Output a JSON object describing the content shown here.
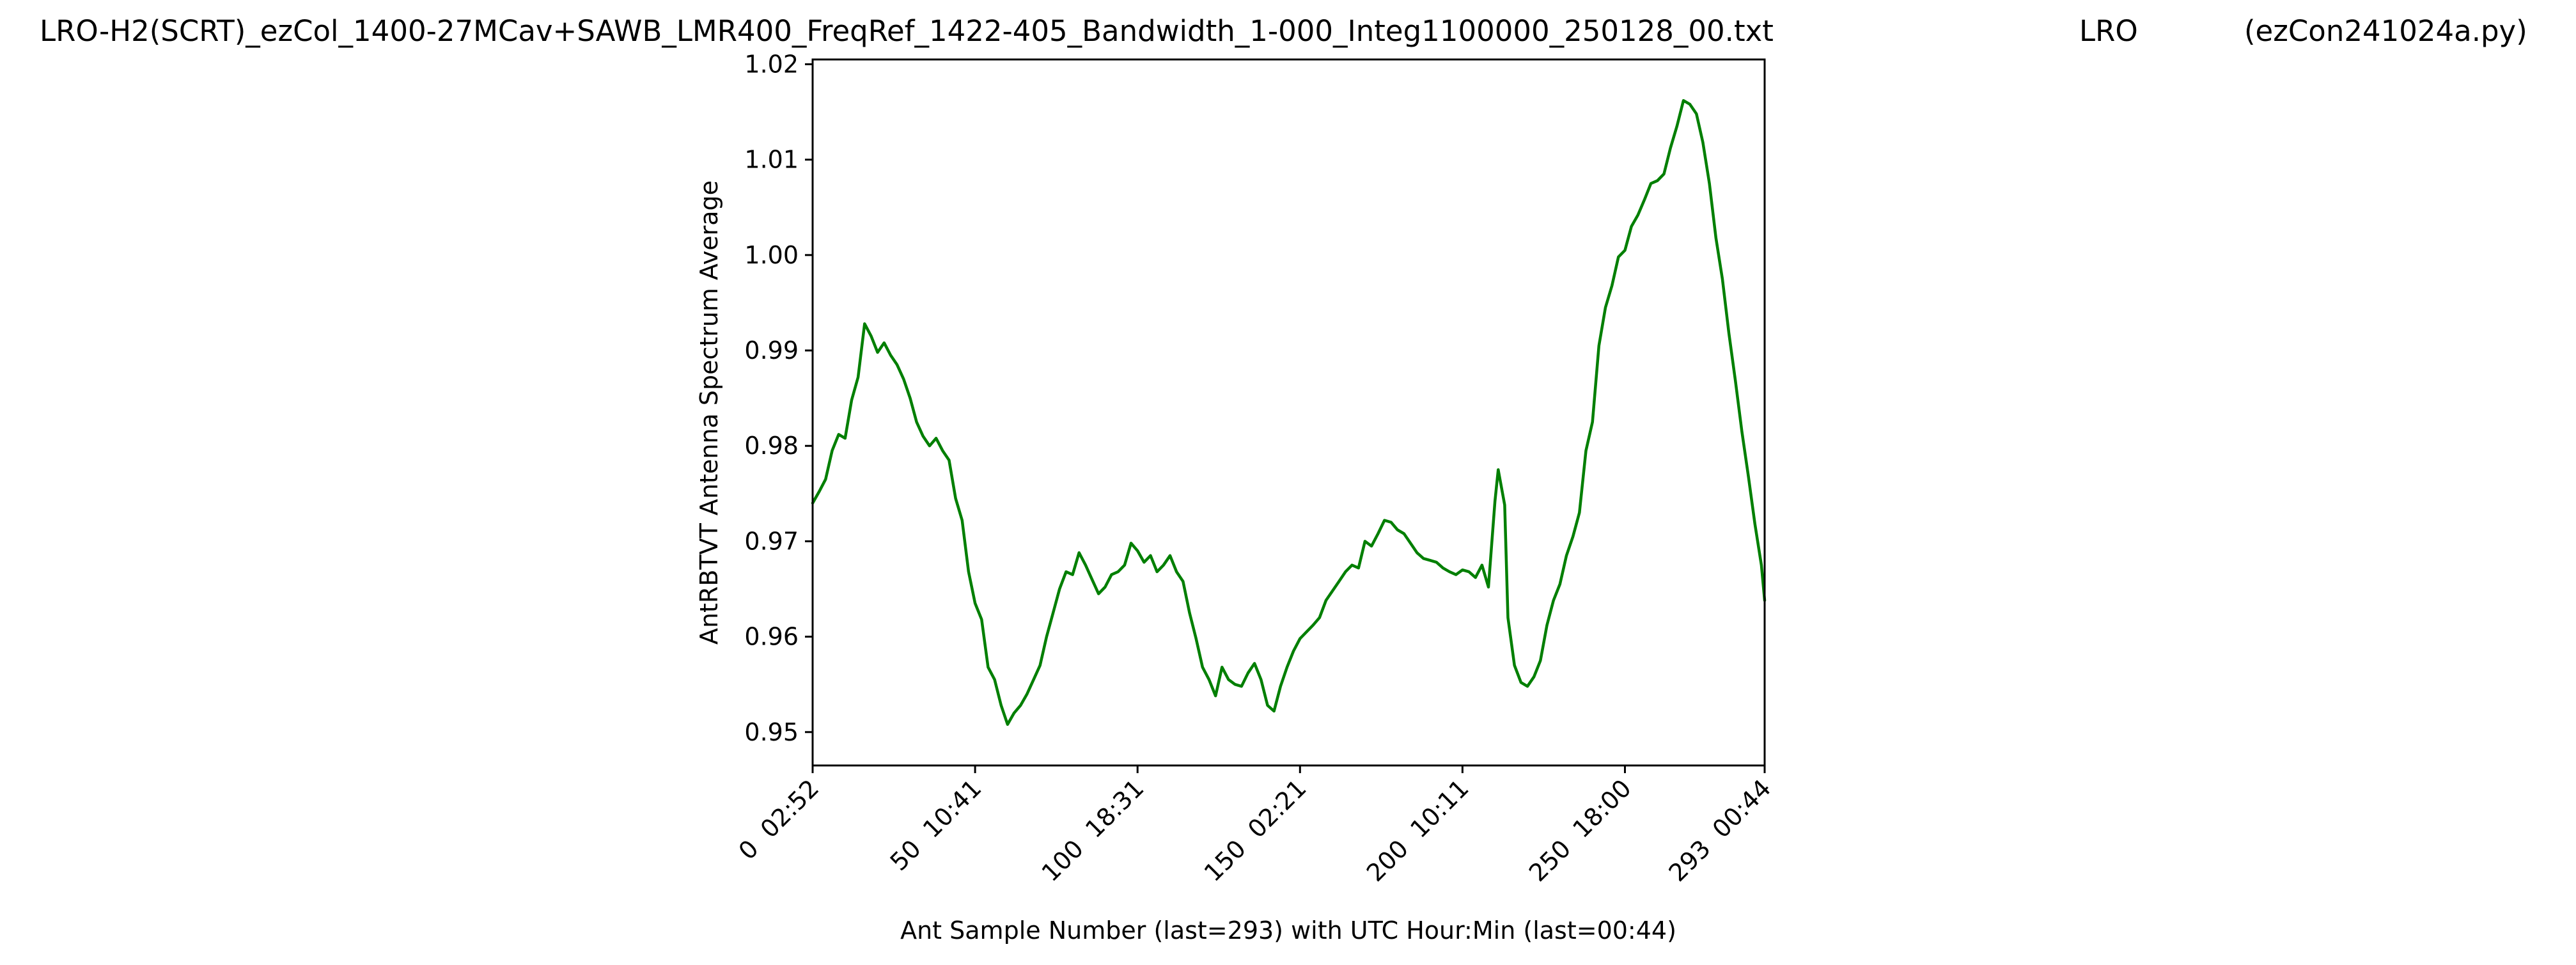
{
  "chart_data": {
    "type": "line",
    "title": "LRO-H2(SCRT)_ezCol_1400-27MCav+SAWB_LMR400_FreqRef_1422-405_Bandwidth_1-000_Integ1100000_250128_00.txt",
    "title_middle": "LRO",
    "title_right": "(ezCon241024a.py)",
    "xlabel": "Ant Sample Number (last=293) with UTC Hour:Min (last=00:44)",
    "ylabel": "AntRBTVT Antenna Spectrum Average",
    "xlim": [
      0,
      293
    ],
    "ylim": [
      0.9465,
      1.0205
    ],
    "xticks": [
      {
        "value": 0,
        "label": "0  02:52"
      },
      {
        "value": 50,
        "label": "50  10:41"
      },
      {
        "value": 100,
        "label": "100  18:31"
      },
      {
        "value": 150,
        "label": "150  02:21"
      },
      {
        "value": 200,
        "label": "200  10:11"
      },
      {
        "value": 250,
        "label": "250  18:00"
      },
      {
        "value": 293,
        "label": "293  00:44"
      }
    ],
    "yticks": [
      {
        "value": 0.95,
        "label": "0.95"
      },
      {
        "value": 0.96,
        "label": "0.96"
      },
      {
        "value": 0.97,
        "label": "0.97"
      },
      {
        "value": 0.98,
        "label": "0.98"
      },
      {
        "value": 0.99,
        "label": "0.99"
      },
      {
        "value": 1.0,
        "label": "1.00"
      },
      {
        "value": 1.01,
        "label": "1.01"
      },
      {
        "value": 1.02,
        "label": "1.02"
      }
    ],
    "grid": false,
    "line_color": "#007f00",
    "series": [
      {
        "points": [
          [
            0,
            0.974
          ],
          [
            2,
            0.9752
          ],
          [
            4,
            0.9765
          ],
          [
            6,
            0.9795
          ],
          [
            8,
            0.9812
          ],
          [
            10,
            0.9808
          ],
          [
            12,
            0.9848
          ],
          [
            14,
            0.9872
          ],
          [
            16,
            0.9928
          ],
          [
            18,
            0.9915
          ],
          [
            20,
            0.9898
          ],
          [
            22,
            0.9908
          ],
          [
            24,
            0.9895
          ],
          [
            26,
            0.9885
          ],
          [
            28,
            0.987
          ],
          [
            30,
            0.985
          ],
          [
            32,
            0.9825
          ],
          [
            34,
            0.981
          ],
          [
            36,
            0.98
          ],
          [
            38,
            0.9808
          ],
          [
            40,
            0.9795
          ],
          [
            42,
            0.9785
          ],
          [
            44,
            0.9745
          ],
          [
            46,
            0.9722
          ],
          [
            48,
            0.9668
          ],
          [
            50,
            0.9635
          ],
          [
            52,
            0.9618
          ],
          [
            54,
            0.9568
          ],
          [
            56,
            0.9555
          ],
          [
            58,
            0.9528
          ],
          [
            60,
            0.9508
          ],
          [
            62,
            0.952
          ],
          [
            64,
            0.9528
          ],
          [
            66,
            0.954
          ],
          [
            68,
            0.9555
          ],
          [
            70,
            0.957
          ],
          [
            72,
            0.96
          ],
          [
            74,
            0.9625
          ],
          [
            76,
            0.965
          ],
          [
            78,
            0.9668
          ],
          [
            80,
            0.9665
          ],
          [
            82,
            0.9688
          ],
          [
            84,
            0.9675
          ],
          [
            86,
            0.966
          ],
          [
            88,
            0.9645
          ],
          [
            90,
            0.9652
          ],
          [
            92,
            0.9665
          ],
          [
            94,
            0.9668
          ],
          [
            96,
            0.9675
          ],
          [
            98,
            0.9698
          ],
          [
            100,
            0.969
          ],
          [
            102,
            0.9678
          ],
          [
            104,
            0.9685
          ],
          [
            106,
            0.9668
          ],
          [
            108,
            0.9675
          ],
          [
            110,
            0.9685
          ],
          [
            112,
            0.9668
          ],
          [
            114,
            0.9658
          ],
          [
            116,
            0.9625
          ],
          [
            118,
            0.9598
          ],
          [
            120,
            0.9568
          ],
          [
            122,
            0.9555
          ],
          [
            124,
            0.9538
          ],
          [
            126,
            0.9568
          ],
          [
            128,
            0.9555
          ],
          [
            130,
            0.955
          ],
          [
            132,
            0.9548
          ],
          [
            134,
            0.9562
          ],
          [
            136,
            0.9572
          ],
          [
            138,
            0.9555
          ],
          [
            140,
            0.9528
          ],
          [
            142,
            0.9522
          ],
          [
            144,
            0.9548
          ],
          [
            146,
            0.9568
          ],
          [
            148,
            0.9585
          ],
          [
            150,
            0.9598
          ],
          [
            152,
            0.9605
          ],
          [
            154,
            0.9612
          ],
          [
            156,
            0.962
          ],
          [
            158,
            0.9638
          ],
          [
            160,
            0.9648
          ],
          [
            162,
            0.9658
          ],
          [
            164,
            0.9668
          ],
          [
            166,
            0.9675
          ],
          [
            168,
            0.9672
          ],
          [
            170,
            0.97
          ],
          [
            172,
            0.9695
          ],
          [
            174,
            0.9708
          ],
          [
            176,
            0.9722
          ],
          [
            178,
            0.972
          ],
          [
            180,
            0.9712
          ],
          [
            182,
            0.9708
          ],
          [
            184,
            0.9698
          ],
          [
            186,
            0.9688
          ],
          [
            188,
            0.9682
          ],
          [
            190,
            0.968
          ],
          [
            192,
            0.9678
          ],
          [
            194,
            0.9672
          ],
          [
            196,
            0.9668
          ],
          [
            198,
            0.9665
          ],
          [
            200,
            0.967
          ],
          [
            202,
            0.9668
          ],
          [
            204,
            0.9662
          ],
          [
            206,
            0.9675
          ],
          [
            208,
            0.9652
          ],
          [
            210,
            0.9742
          ],
          [
            211,
            0.9775
          ],
          [
            213,
            0.9738
          ],
          [
            214,
            0.962
          ],
          [
            216,
            0.957
          ],
          [
            218,
            0.9552
          ],
          [
            220,
            0.9548
          ],
          [
            222,
            0.9558
          ],
          [
            224,
            0.9575
          ],
          [
            226,
            0.9612
          ],
          [
            228,
            0.9638
          ],
          [
            230,
            0.9655
          ],
          [
            232,
            0.9685
          ],
          [
            234,
            0.9705
          ],
          [
            236,
            0.973
          ],
          [
            238,
            0.9795
          ],
          [
            240,
            0.9825
          ],
          [
            242,
            0.9905
          ],
          [
            244,
            0.9945
          ],
          [
            246,
            0.9968
          ],
          [
            248,
            0.9998
          ],
          [
            250,
            1.0005
          ],
          [
            252,
            1.003
          ],
          [
            254,
            1.0042
          ],
          [
            256,
            1.0058
          ],
          [
            258,
            1.0075
          ],
          [
            260,
            1.0078
          ],
          [
            262,
            1.0085
          ],
          [
            264,
            1.0112
          ],
          [
            266,
            1.0135
          ],
          [
            268,
            1.0162
          ],
          [
            270,
            1.0158
          ],
          [
            272,
            1.0148
          ],
          [
            274,
            1.0118
          ],
          [
            276,
            1.0075
          ],
          [
            278,
            1.0018
          ],
          [
            280,
            0.9975
          ],
          [
            282,
            0.9918
          ],
          [
            284,
            0.9868
          ],
          [
            286,
            0.9815
          ],
          [
            288,
            0.9768
          ],
          [
            290,
            0.9718
          ],
          [
            292,
            0.9675
          ],
          [
            293,
            0.9638
          ]
        ]
      }
    ]
  }
}
